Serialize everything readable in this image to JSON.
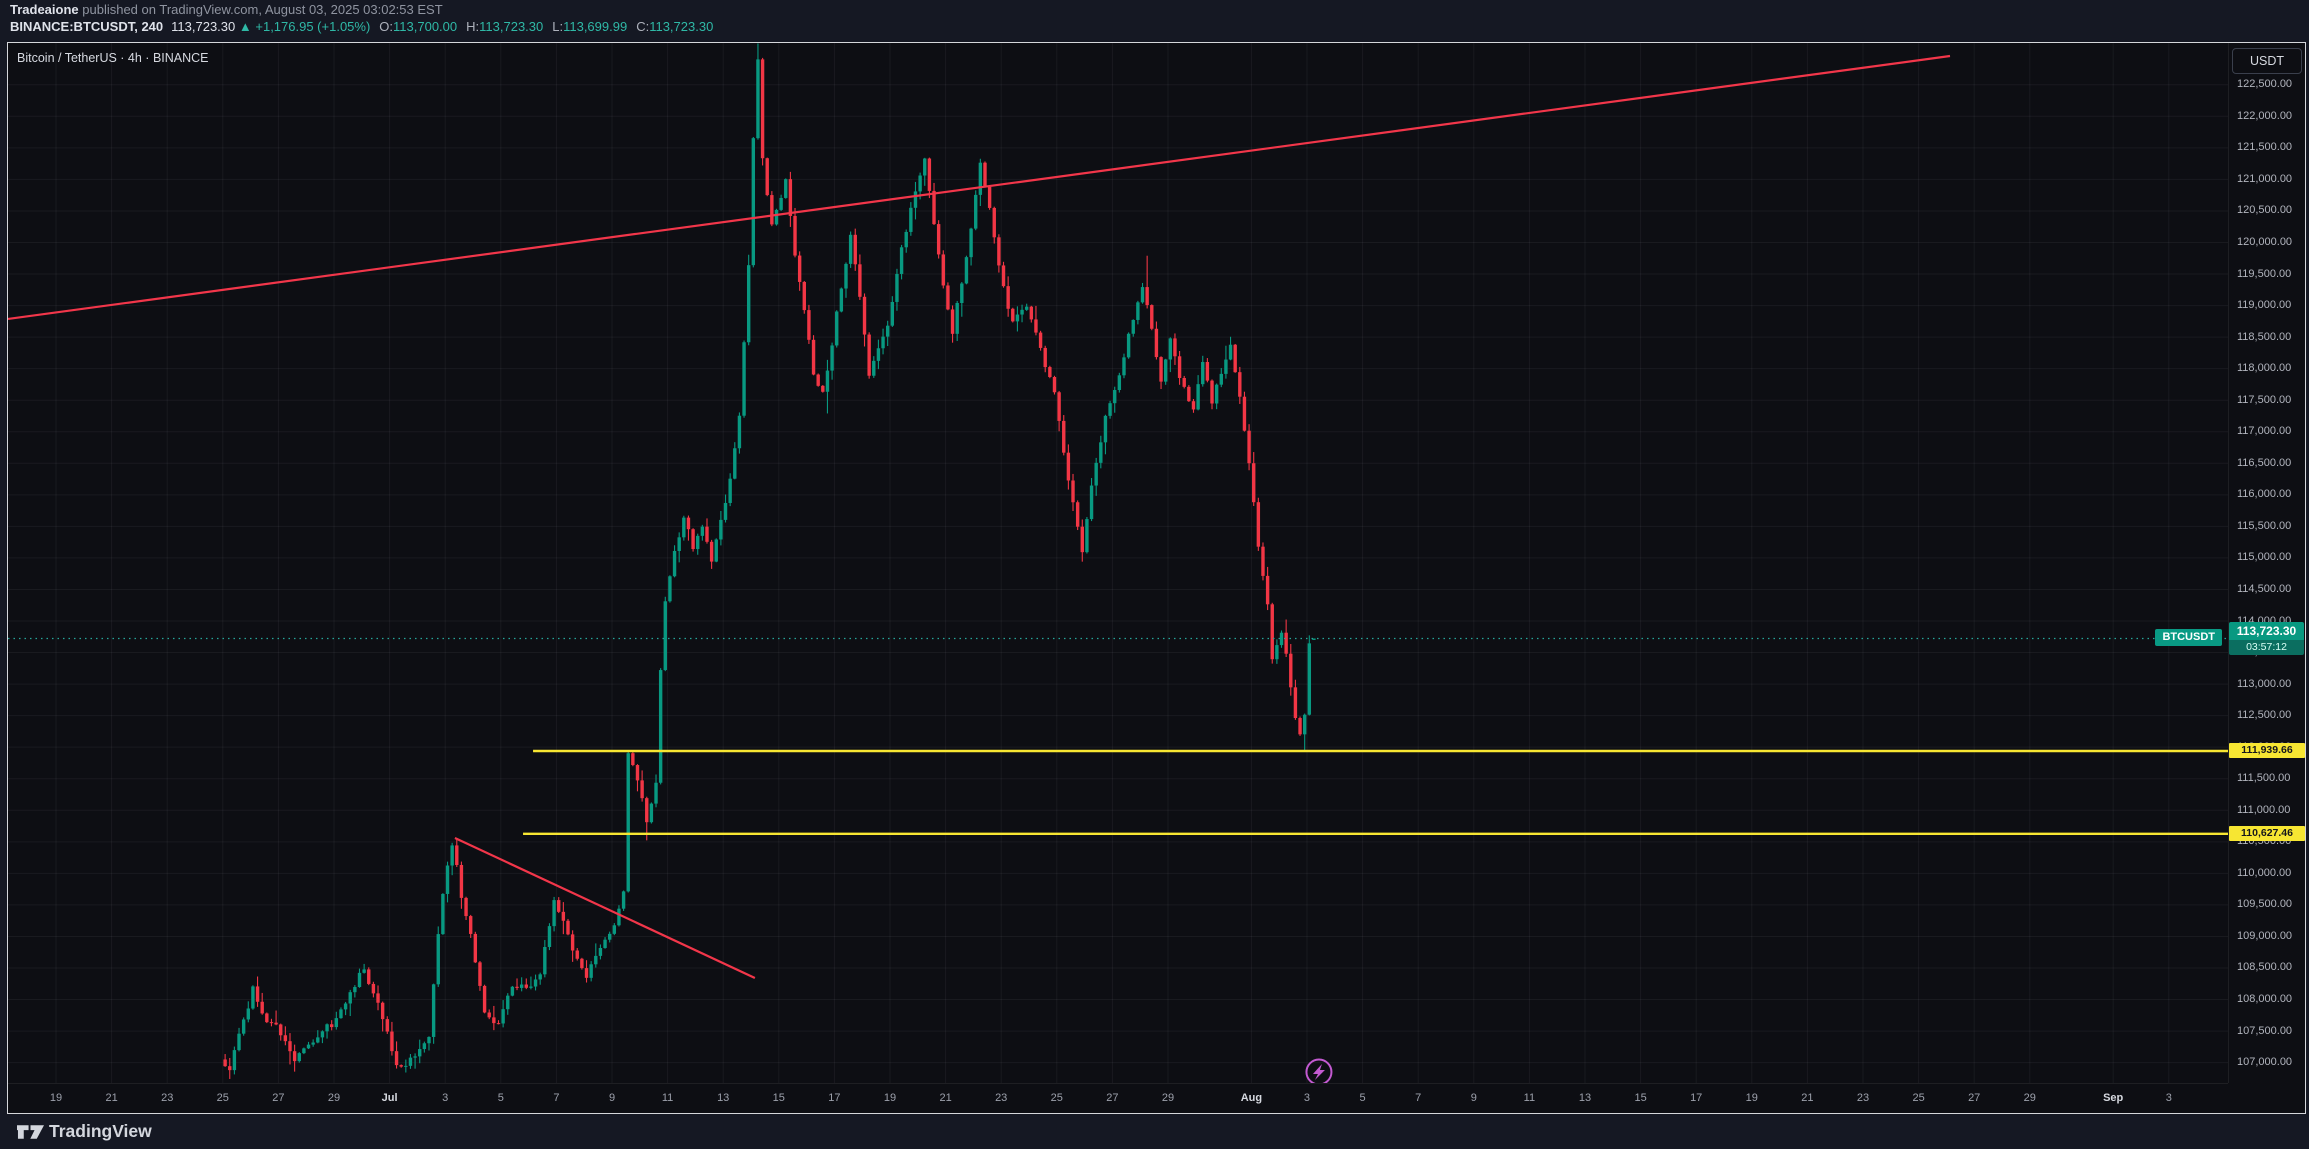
{
  "header": {
    "byline_author": "Tradeaione",
    "byline_rest": " published on TradingView.com, August 03, 2025 03:02:53 EST",
    "symbol_text": "BINANCE:BTCUSDT, 240",
    "last_price": "113,723.30",
    "change_arrow": "▲",
    "change_text": "+1,176.95 (+1.05%)",
    "ohlc": [
      {
        "label": "O:",
        "value": "113,700.00"
      },
      {
        "label": "H:",
        "value": "113,723.30"
      },
      {
        "label": "L:",
        "value": "113,699.99"
      },
      {
        "label": "C:",
        "value": "113,723.30"
      }
    ]
  },
  "pane": {
    "title": "Bitcoin / TetherUS · 4h · BINANCE"
  },
  "plot": {
    "symbol_tag": "BTCUSDT"
  },
  "price_scale": {
    "currency_button": "USDT",
    "labels": [
      "122,500.00",
      "122,000.00",
      "121,500.00",
      "121,000.00",
      "120,500.00",
      "120,000.00",
      "119,500.00",
      "119,000.00",
      "118,500.00",
      "118,000.00",
      "117,500.00",
      "117,000.00",
      "116,500.00",
      "116,000.00",
      "115,500.00",
      "115,000.00",
      "114,500.00",
      "114,000.00",
      "113,500.00",
      "113,000.00",
      "112,500.00",
      "112,000.00",
      "111,500.00",
      "111,000.00",
      "110,500.00",
      "110,000.00",
      "109,500.00",
      "109,000.00",
      "108,500.00",
      "108,000.00",
      "107,500.00",
      "107,000.00"
    ],
    "current_badge": {
      "price": "113,723.30",
      "countdown": "03:57:12"
    },
    "level_badges": [
      {
        "text": "111,939.66"
      },
      {
        "text": "110,627.46"
      }
    ]
  },
  "time_scale": {
    "labels": [
      {
        "t": "19",
        "d": 0
      },
      {
        "t": "21",
        "d": 2
      },
      {
        "t": "23",
        "d": 4
      },
      {
        "t": "25",
        "d": 6
      },
      {
        "t": "27",
        "d": 8
      },
      {
        "t": "29",
        "d": 10
      },
      {
        "t": "Jul",
        "d": 12,
        "month": true
      },
      {
        "t": "3",
        "d": 14
      },
      {
        "t": "5",
        "d": 16
      },
      {
        "t": "7",
        "d": 18
      },
      {
        "t": "9",
        "d": 20
      },
      {
        "t": "11",
        "d": 22
      },
      {
        "t": "13",
        "d": 24
      },
      {
        "t": "15",
        "d": 26
      },
      {
        "t": "17",
        "d": 28
      },
      {
        "t": "19",
        "d": 30
      },
      {
        "t": "21",
        "d": 32
      },
      {
        "t": "23",
        "d": 34
      },
      {
        "t": "25",
        "d": 36
      },
      {
        "t": "27",
        "d": 38
      },
      {
        "t": "29",
        "d": 40
      },
      {
        "t": "Aug",
        "d": 43,
        "month": true
      },
      {
        "t": "3",
        "d": 45
      },
      {
        "t": "5",
        "d": 47
      },
      {
        "t": "7",
        "d": 49
      },
      {
        "t": "9",
        "d": 51
      },
      {
        "t": "11",
        "d": 53
      },
      {
        "t": "13",
        "d": 55
      },
      {
        "t": "15",
        "d": 57
      },
      {
        "t": "17",
        "d": 59
      },
      {
        "t": "19",
        "d": 61
      },
      {
        "t": "21",
        "d": 63
      },
      {
        "t": "23",
        "d": 65
      },
      {
        "t": "25",
        "d": 67
      },
      {
        "t": "27",
        "d": 69
      },
      {
        "t": "29",
        "d": 71
      },
      {
        "t": "Sep",
        "d": 74,
        "month": true
      },
      {
        "t": "3",
        "d": 76
      }
    ]
  },
  "footer": {
    "brand": "TradingView"
  },
  "colors": {
    "up": "#089981",
    "down": "#f23645",
    "trend_line": "#f2364a",
    "level_line": "#f7e632",
    "current_line": "#26a69a",
    "grid": "rgba(240,243,250,0.055)",
    "event_marker": "#c35ad1",
    "chart_bg": "#0d0e13",
    "frame_bg": "#151823"
  },
  "chart_data": {
    "type": "candlestick",
    "symbol": "BINANCE:BTCUSDT",
    "title": "Bitcoin / TetherUS · 4h · BINANCE",
    "interval": "4h",
    "current_price": 113723.3,
    "last_candle": {
      "open": 113700.0,
      "high": 113723.3,
      "low": 113699.99,
      "close": 113723.3
    },
    "change": {
      "abs": 1176.95,
      "pct": 1.05
    },
    "y_axis": {
      "top_price": 123162,
      "bottom_price": 106677,
      "tick_step": 500,
      "tick_min": 107000,
      "tick_max": 122500
    },
    "x_axis": {
      "origin_date": "2025-06-19",
      "left_day": -1.727,
      "right_day": 78.13,
      "days_per_label": 2
    },
    "key_levels": [
      {
        "price": 111939.66,
        "label": "111,939.66",
        "start_day": 17.16
      },
      {
        "price": 110627.46,
        "label": "110,627.46",
        "start_day": 16.8
      }
    ],
    "trend_lines": [
      {
        "from_day": -1.727,
        "from_price": 118788,
        "to_day": 68.13,
        "to_price": 122956
      },
      {
        "from_day": 14.35,
        "from_price": 110561,
        "to_day": 25.14,
        "to_price": 108342
      }
    ],
    "event_marker": {
      "day": 45.43,
      "icon": "lightning"
    },
    "candles_note": "4h candles synthesized deterministically from the price path anchors read off the screenshot; times are MM-DDTHH of 2025, prices in USDT.",
    "price_path_anchors": [
      [
        "06-25T00",
        107050
      ],
      [
        "06-25T08",
        106900
      ],
      [
        "06-25T16",
        107450
      ],
      [
        "06-26T04",
        108150
      ],
      [
        "06-26T12",
        107750
      ],
      [
        "06-27T00",
        107550
      ],
      [
        "06-27T16",
        107050
      ],
      [
        "06-28T04",
        107250
      ],
      [
        "06-28T16",
        107500
      ],
      [
        "06-29T04",
        107650
      ],
      [
        "06-29T16",
        108100
      ],
      [
        "06-30T04",
        108500
      ],
      [
        "06-30T12",
        108100
      ],
      [
        "06-30T20",
        107700
      ],
      [
        "07-01T08",
        107000
      ],
      [
        "07-01T16",
        106950
      ],
      [
        "07-02T04",
        107200
      ],
      [
        "07-02T12",
        107350
      ],
      [
        "07-02T16",
        108300
      ],
      [
        "07-03T00",
        109700
      ],
      [
        "07-03T08",
        110500
      ],
      [
        "07-03T16",
        109650
      ],
      [
        "07-04T00",
        109050
      ],
      [
        "07-04T12",
        107750
      ],
      [
        "07-05T00",
        107600
      ],
      [
        "07-05T12",
        108250
      ],
      [
        "07-06T00",
        108150
      ],
      [
        "07-06T12",
        108400
      ],
      [
        "07-07T00",
        109600
      ],
      [
        "07-07T08",
        109250
      ],
      [
        "07-07T16",
        108750
      ],
      [
        "07-08T04",
        108400
      ],
      [
        "07-08T16",
        108850
      ],
      [
        "07-09T04",
        109150
      ],
      [
        "07-09T12",
        109750
      ],
      [
        "07-09T16",
        111950
      ],
      [
        "07-10T00",
        111450
      ],
      [
        "07-10T08",
        110850
      ],
      [
        "07-10T16",
        111400
      ],
      [
        "07-10T20",
        113250
      ],
      [
        "07-11T00",
        114350
      ],
      [
        "07-11T08",
        115050
      ],
      [
        "07-11T16",
        115650
      ],
      [
        "07-12T00",
        115150
      ],
      [
        "07-12T08",
        115450
      ],
      [
        "07-12T16",
        114950
      ],
      [
        "07-13T00",
        115550
      ],
      [
        "07-13T08",
        116300
      ],
      [
        "07-13T16",
        117200
      ],
      [
        "07-14T00",
        119600
      ],
      [
        "07-14T04",
        121600
      ],
      [
        "07-14T08",
        122900
      ],
      [
        "07-14T12",
        121300
      ],
      [
        "07-14T20",
        120300
      ],
      [
        "07-15T04",
        120700
      ],
      [
        "07-15T08",
        121000
      ],
      [
        "07-15T16",
        119800
      ],
      [
        "07-16T00",
        118900
      ],
      [
        "07-16T08",
        117900
      ],
      [
        "07-16T16",
        117600
      ],
      [
        "07-17T00",
        118400
      ],
      [
        "07-17T08",
        119300
      ],
      [
        "07-17T16",
        120100
      ],
      [
        "07-18T00",
        119100
      ],
      [
        "07-18T08",
        117900
      ],
      [
        "07-18T16",
        118300
      ],
      [
        "07-19T00",
        118700
      ],
      [
        "07-19T12",
        119900
      ],
      [
        "07-20T00",
        120800
      ],
      [
        "07-20T08",
        121350
      ],
      [
        "07-20T16",
        120300
      ],
      [
        "07-21T00",
        119300
      ],
      [
        "07-21T08",
        118600
      ],
      [
        "07-21T16",
        119400
      ],
      [
        "07-22T00",
        120200
      ],
      [
        "07-22T08",
        121300
      ],
      [
        "07-22T16",
        120500
      ],
      [
        "07-23T00",
        119600
      ],
      [
        "07-23T12",
        118700
      ],
      [
        "07-24T00",
        119000
      ],
      [
        "07-24T12",
        118300
      ],
      [
        "07-25T00",
        117600
      ],
      [
        "07-25T12",
        116200
      ],
      [
        "07-26T00",
        115100
      ],
      [
        "07-26T08",
        116100
      ],
      [
        "07-26T20",
        117200
      ],
      [
        "07-27T08",
        117900
      ],
      [
        "07-27T20",
        118800
      ],
      [
        "07-28T04",
        119300
      ],
      [
        "07-28T12",
        118600
      ],
      [
        "07-28T20",
        117800
      ],
      [
        "07-29T04",
        118500
      ],
      [
        "07-29T12",
        117900
      ],
      [
        "07-30T00",
        117300
      ],
      [
        "07-30T08",
        118100
      ],
      [
        "07-30T16",
        117500
      ],
      [
        "07-31T00",
        117900
      ],
      [
        "07-31T08",
        118400
      ],
      [
        "07-31T16",
        117600
      ],
      [
        "08-01T00",
        116500
      ],
      [
        "08-01T08",
        115200
      ],
      [
        "08-01T16",
        114300
      ],
      [
        "08-01T20",
        113400
      ],
      [
        "08-02T04",
        113850
      ],
      [
        "08-02T08",
        113450
      ],
      [
        "08-02T12",
        112900
      ],
      [
        "08-02T16",
        112450
      ],
      [
        "08-02T20",
        112250
      ],
      [
        "08-03T00",
        112500
      ],
      [
        "08-03T04",
        113700
      ]
    ],
    "candle_overrides": [
      {
        "t": "06-25T04",
        "low": 106741
      },
      {
        "t": "07-10T04",
        "low": 110523
      },
      {
        "t": "07-14T04",
        "high": 123155
      },
      {
        "t": "07-16T16",
        "low": 117290
      },
      {
        "t": "07-28T04",
        "high": 119790
      },
      {
        "t": "08-02T20",
        "low": 111945
      },
      {
        "t": "08-03T04",
        "open": 113700,
        "high": 113723.3,
        "low": 113699.99,
        "close": 113723.3
      }
    ]
  }
}
